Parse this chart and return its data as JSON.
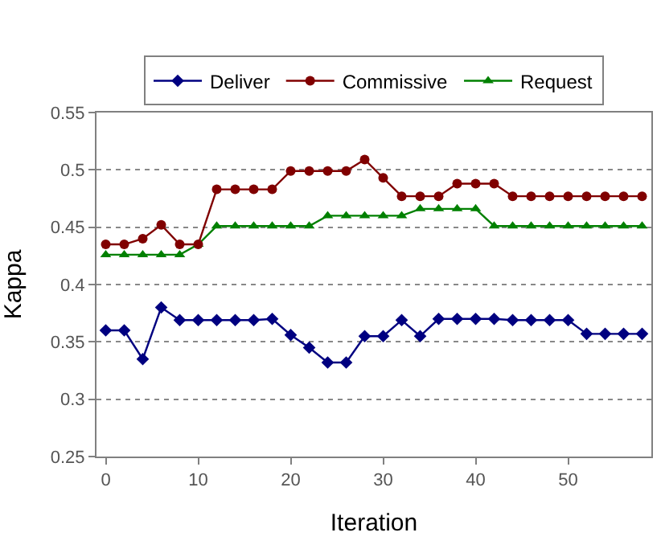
{
  "chart_data": {
    "type": "line",
    "xlabel": "Iteration",
    "ylabel": "Kappa",
    "x": [
      0,
      2,
      4,
      6,
      8,
      10,
      12,
      14,
      16,
      18,
      20,
      22,
      24,
      26,
      28,
      30,
      32,
      34,
      36,
      38,
      40,
      42,
      44,
      46,
      48,
      50,
      52,
      54,
      56,
      58
    ],
    "series": [
      {
        "name": "Deliver",
        "color": "#000080",
        "marker": "diamond",
        "values": [
          0.36,
          0.36,
          0.335,
          0.38,
          0.369,
          0.369,
          0.369,
          0.369,
          0.369,
          0.37,
          0.356,
          0.345,
          0.332,
          0.332,
          0.355,
          0.355,
          0.369,
          0.355,
          0.37,
          0.37,
          0.37,
          0.37,
          0.369,
          0.369,
          0.369,
          0.369,
          0.357,
          0.357,
          0.357,
          0.357
        ]
      },
      {
        "name": "Commissive",
        "color": "#800000",
        "marker": "circle",
        "values": [
          0.435,
          0.435,
          0.44,
          0.452,
          0.435,
          0.435,
          0.483,
          0.483,
          0.483,
          0.483,
          0.499,
          0.499,
          0.499,
          0.499,
          0.509,
          0.493,
          0.477,
          0.477,
          0.477,
          0.488,
          0.488,
          0.488,
          0.477,
          0.477,
          0.477,
          0.477,
          0.477,
          0.477,
          0.477,
          0.477
        ]
      },
      {
        "name": "Request",
        "color": "#008000",
        "marker": "triangle",
        "values": [
          0.426,
          0.426,
          0.426,
          0.426,
          0.426,
          0.435,
          0.451,
          0.451,
          0.451,
          0.451,
          0.451,
          0.451,
          0.46,
          0.46,
          0.46,
          0.46,
          0.46,
          0.466,
          0.466,
          0.466,
          0.466,
          0.451,
          0.451,
          0.451,
          0.451,
          0.451,
          0.451,
          0.451,
          0.451,
          0.451
        ]
      }
    ],
    "xlim": [
      -1,
      59
    ],
    "xticks": [
      0,
      10,
      20,
      30,
      40,
      50
    ],
    "ylim": [
      0.25,
      0.55
    ],
    "yticks": [
      0.25,
      0.3,
      0.35,
      0.4,
      0.45,
      0.5,
      0.55
    ],
    "grid": "y",
    "legend": "top"
  }
}
